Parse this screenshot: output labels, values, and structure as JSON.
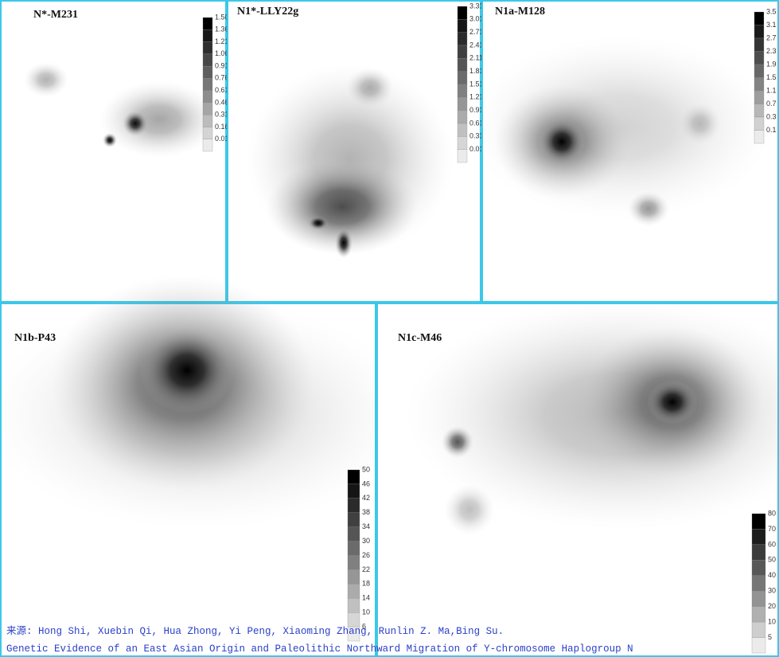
{
  "panels": [
    {
      "title": "N*-M231",
      "legend": [
        "1.50",
        "1.36",
        "1.21",
        "1.06",
        "0.91",
        "0.76",
        "0.61",
        "0.46",
        "0.31",
        "0.16",
        "0.01"
      ]
    },
    {
      "title": "N1*-LLY22g",
      "legend": [
        "3.31",
        "3.01",
        "2.71",
        "2.41",
        "2.11",
        "1.81",
        "1.51",
        "1.21",
        "0.91",
        "0.61",
        "0.31",
        "0.01"
      ]
    },
    {
      "title": "N1a-M128",
      "legend": [
        "3.5",
        "3.1",
        "2.7",
        "2.3",
        "1.9",
        "1.5",
        "1.1",
        "0.7",
        "0.3",
        "0.1"
      ]
    },
    {
      "title": "N1b-P43",
      "legend": [
        "50",
        "46",
        "42",
        "38",
        "34",
        "30",
        "26",
        "22",
        "18",
        "14",
        "10",
        "6"
      ]
    },
    {
      "title": "N1c-M46",
      "legend": [
        "80",
        "70",
        "60",
        "50",
        "40",
        "30",
        "20",
        "10",
        "5"
      ]
    }
  ],
  "caption": [
    "来源: Hong Shi, Xuebin Qi, Hua Zhong, Yi Peng, Xiaoming Zhang, Runlin Z. Ma,Bing Su.",
    "Genetic Evidence of an East Asian Origin and Paleolithic Northward Migration of Y-chromosome Haplogroup N"
  ]
}
